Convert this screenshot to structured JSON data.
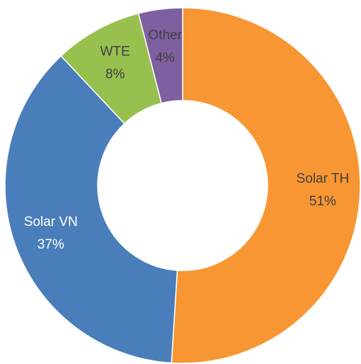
{
  "chart_data": {
    "type": "donut",
    "categories": [
      "Solar TH",
      "Solar VN",
      "WTE",
      "Other"
    ],
    "values": [
      51,
      37,
      8,
      4
    ],
    "value_labels": [
      "51%",
      "37%",
      "8%",
      "4%"
    ],
    "colors": [
      "#f79633",
      "#4a7ebb",
      "#98c04f",
      "#7e5fa0"
    ]
  }
}
